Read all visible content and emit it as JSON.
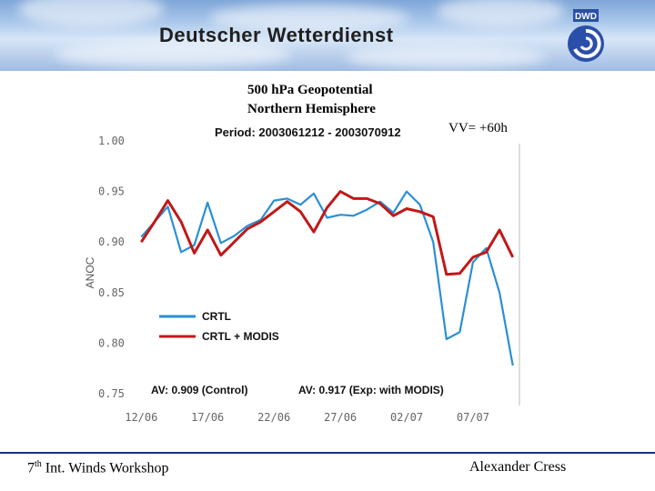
{
  "header": {
    "brand": "Deutscher Wetterdienst",
    "logo_text": "DWD"
  },
  "slide": {
    "title_line1": "500 hPa Geopotential",
    "title_line2": "Northern Hemisphere",
    "forecast_label": "VV= +60h"
  },
  "footer": {
    "left_base": "7",
    "left_sup": "th",
    "left_rest": " Int. Winds Workshop",
    "right": "Alexander Cress"
  },
  "colors": {
    "crtl": "#2a8fd6",
    "crtl_modis": "#c01818",
    "footer_line": "#1a2f8a"
  },
  "chart_data": {
    "type": "line",
    "title": "Period: 2003061212 - 2003070912",
    "ylabel": "ANOC",
    "xlabel": "",
    "ylim": [
      0.75,
      1.0
    ],
    "yticks": [
      1.0,
      0.95,
      0.9,
      0.85,
      0.8,
      0.75
    ],
    "ytick_labels": [
      "1.00",
      "0.95",
      "0.90",
      "0.85",
      "0.80",
      "0.75"
    ],
    "xticks": [
      0,
      10,
      20,
      30,
      40,
      50
    ],
    "xtick_labels": [
      "12/06",
      "17/06",
      "22/06",
      "27/06",
      "02/07",
      "07/07"
    ],
    "xlim": [
      -1,
      57
    ],
    "x": [
      0,
      2,
      4,
      6,
      8,
      10,
      12,
      14,
      16,
      18,
      20,
      22,
      24,
      26,
      28,
      30,
      32,
      34,
      36,
      38,
      40,
      42,
      44,
      46,
      48,
      50,
      52,
      54,
      56
    ],
    "series": [
      {
        "name": "CRTL",
        "values": [
          0.905,
          0.92,
          0.935,
          0.89,
          0.897,
          0.939,
          0.899,
          0.906,
          0.916,
          0.922,
          0.941,
          0.943,
          0.937,
          0.948,
          0.924,
          0.927,
          0.926,
          0.932,
          0.94,
          0.929,
          0.95,
          0.937,
          0.9,
          0.804,
          0.811,
          0.88,
          0.894,
          0.85,
          0.778
        ]
      },
      {
        "name": "CRTL + MODIS",
        "values": [
          0.9,
          0.92,
          0.941,
          0.92,
          0.889,
          0.912,
          0.887,
          0.9,
          0.913,
          0.92,
          0.93,
          0.94,
          0.93,
          0.91,
          0.934,
          0.95,
          0.943,
          0.943,
          0.938,
          0.926,
          0.933,
          0.93,
          0.925,
          0.868,
          0.869,
          0.885,
          0.89,
          0.912,
          0.885
        ]
      }
    ],
    "annotations": {
      "av_control": "AV: 0.909 (Control)",
      "av_modis": "AV: 0.917 (Exp: with MODIS)"
    },
    "legend_placement": "lower-left",
    "grid": false
  }
}
